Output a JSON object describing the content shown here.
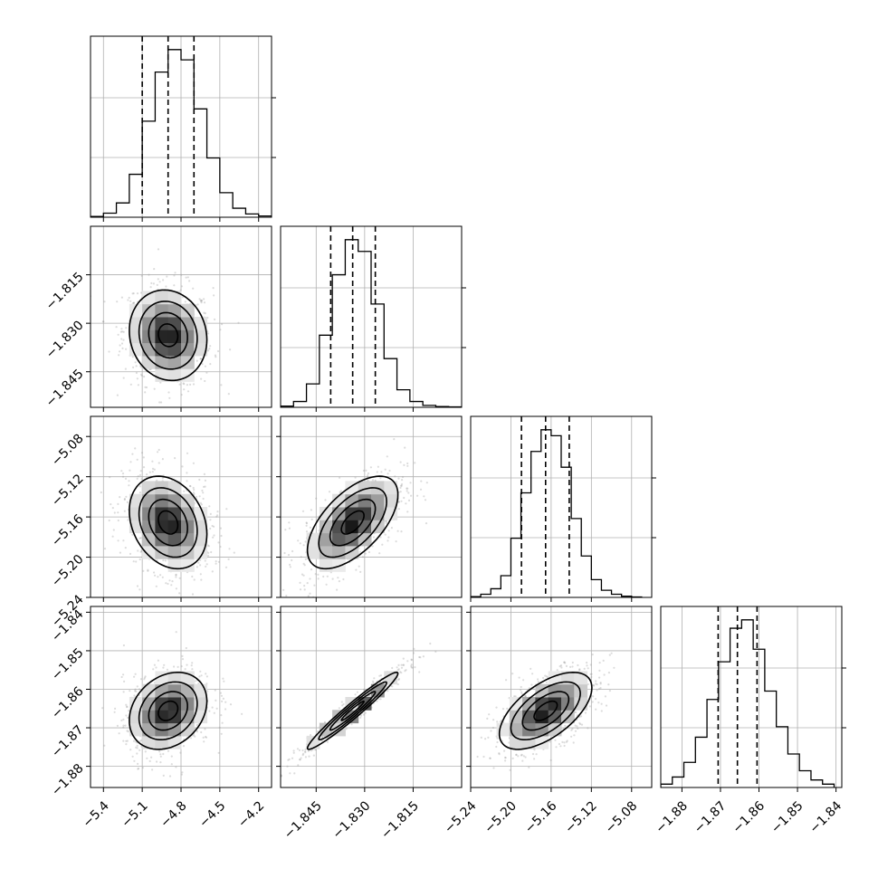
{
  "chart_data": {
    "type": "corner",
    "parameters": [
      {
        "xticks": [
          "−5.4",
          "−5.1",
          "−4.8",
          "−4.5",
          "−4.2"
        ],
        "xtick_values": [
          -5.4,
          -5.1,
          -4.8,
          -4.5,
          -4.2
        ],
        "range": [
          -5.5,
          -4.1
        ],
        "quantiles": [
          -5.1,
          -4.9,
          -4.7
        ],
        "hist_bins": [
          -5.5,
          -5.4,
          -5.3,
          -5.2,
          -5.1,
          -5.0,
          -4.9,
          -4.8,
          -4.7,
          -4.6,
          -4.5,
          -4.4,
          -4.3,
          -4.2,
          -4.1
        ],
        "hist_counts": [
          2,
          10,
          35,
          105,
          235,
          355,
          410,
          385,
          265,
          145,
          60,
          22,
          8,
          3
        ],
        "sigma": 0.15
      },
      {
        "xticks": [
          "−1.845",
          "−1.830",
          "−1.815"
        ],
        "xtick_values": [
          -1.845,
          -1.83,
          -1.815
        ],
        "yticks": [
          "−1.815",
          "−1.830",
          "−1.845"
        ],
        "ytick_values": [
          -1.815,
          -1.83,
          -1.845
        ],
        "range": [
          -1.856,
          -1.8
        ],
        "quantiles": [
          -1.8405,
          -1.8337,
          -1.8267
        ],
        "hist_bins": [
          -1.856,
          -1.852,
          -1.848,
          -1.844,
          -1.84,
          -1.836,
          -1.832,
          -1.828,
          -1.824,
          -1.82,
          -1.816,
          -1.812,
          -1.808,
          -1.804,
          -1.8
        ],
        "hist_counts": [
          3,
          15,
          60,
          185,
          340,
          430,
          400,
          265,
          125,
          45,
          15,
          5,
          2,
          1
        ],
        "sigma": 0.007
      },
      {
        "xticks": [
          "−5.24",
          "−5.20",
          "−5.16",
          "−5.12",
          "−5.08"
        ],
        "xtick_values": [
          -5.24,
          -5.2,
          -5.16,
          -5.12,
          -5.08
        ],
        "yticks": [
          "−5.08",
          "−5.12",
          "−5.16",
          "−5.20",
          "−5.24"
        ],
        "ytick_values": [
          -5.08,
          -5.12,
          -5.16,
          -5.2,
          -5.24
        ],
        "range": [
          -5.24,
          -5.06
        ],
        "quantiles": [
          -5.1895,
          -5.1655,
          -5.142
        ],
        "hist_bins": [
          -5.24,
          -5.23,
          -5.22,
          -5.21,
          -5.2,
          -5.19,
          -5.18,
          -5.17,
          -5.16,
          -5.15,
          -5.14,
          -5.13,
          -5.12,
          -5.11,
          -5.1,
          -5.09,
          -5.08,
          -5.07
        ],
        "hist_counts": [
          2,
          8,
          22,
          55,
          150,
          265,
          370,
          425,
          410,
          330,
          200,
          105,
          45,
          18,
          8,
          3,
          1
        ],
        "sigma": 0.023
      },
      {
        "xticks": [
          "−1.88",
          "−1.87",
          "−1.86",
          "−1.85",
          "−1.84"
        ],
        "xtick_values": [
          -1.88,
          -1.87,
          -1.86,
          -1.85,
          -1.84
        ],
        "yticks": [
          "−1.84",
          "−1.85",
          "−1.86",
          "−1.87",
          "−1.88"
        ],
        "ytick_values": [
          -1.84,
          -1.85,
          -1.86,
          -1.87,
          -1.88
        ],
        "range": [
          -1.8855,
          -1.8385
        ],
        "quantiles": [
          -1.8706,
          -1.8656,
          -1.8605
        ],
        "hist_bins": [
          -1.8855,
          -1.8825,
          -1.8795,
          -1.8765,
          -1.8735,
          -1.8705,
          -1.8675,
          -1.8645,
          -1.8615,
          -1.8585,
          -1.8555,
          -1.8525,
          -1.8495,
          -1.8465,
          -1.8435,
          -1.8405
        ],
        "hist_counts": [
          8,
          25,
          60,
          120,
          210,
          300,
          380,
          400,
          330,
          230,
          145,
          80,
          40,
          18,
          8
        ],
        "sigma": 0.005
      }
    ],
    "correlations": {
      "1-0": -0.1,
      "2-0": -0.25,
      "2-1": 0.6,
      "3-0": 0.25,
      "3-1": 0.97,
      "3-2": 0.6
    },
    "centers": [
      -4.9,
      -1.8337,
      -5.1655,
      -1.8656
    ],
    "contour_levels_sigma": [
      0.5,
      1.0,
      1.5,
      2.0
    ],
    "grid": true,
    "labels": {
      "title": "",
      "xlabel": "",
      "ylabel": ""
    }
  }
}
